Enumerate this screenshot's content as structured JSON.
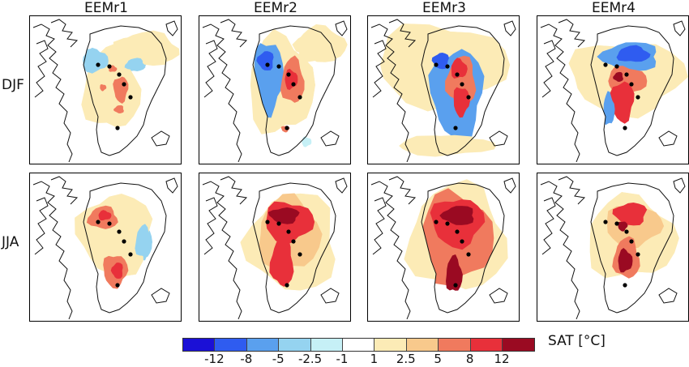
{
  "columns": [
    "EEMr1",
    "EEMr2",
    "EEMr3",
    "EEMr4"
  ],
  "rows": [
    "DJF",
    "JJA"
  ],
  "colorbar": {
    "title": "SAT [°C]",
    "tick_labels": [
      "-12",
      "-8",
      "-5",
      "-2.5",
      "-1",
      "1",
      "2.5",
      "5",
      "8",
      "12"
    ],
    "colors": [
      "#1b10d6",
      "#2f5cf0",
      "#5aa0ee",
      "#95d3f0",
      "#c6f0f6",
      "#ffffff",
      "#fcebb6",
      "#f8c98c",
      "#f07a5e",
      "#e8303a",
      "#9a0a22"
    ]
  },
  "panels": [
    {
      "name": "EEMr1-DJF",
      "blobs": [
        {
          "cx": 100,
          "cy": 90,
          "rx": 35,
          "ry": 50,
          "level": 6
        },
        {
          "cx": 80,
          "cy": 55,
          "rx": 16,
          "ry": 14,
          "level": 3
        },
        {
          "cx": 112,
          "cy": 90,
          "rx": 9,
          "ry": 16,
          "level": 8
        },
        {
          "cx": 110,
          "cy": 115,
          "rx": 6,
          "ry": 5,
          "level": 8
        },
        {
          "cx": 102,
          "cy": 65,
          "rx": 5,
          "ry": 4,
          "level": 8
        },
        {
          "cx": 90,
          "cy": 88,
          "rx": 4,
          "ry": 4,
          "level": 8
        },
        {
          "cx": 145,
          "cy": 40,
          "rx": 38,
          "ry": 20,
          "level": 6
        },
        {
          "cx": 130,
          "cy": 60,
          "rx": 12,
          "ry": 8,
          "level": 3
        }
      ]
    },
    {
      "name": "EEMr2-DJF",
      "blobs": [
        {
          "cx": 100,
          "cy": 85,
          "rx": 40,
          "ry": 60,
          "level": 6
        },
        {
          "cx": 85,
          "cy": 75,
          "rx": 18,
          "ry": 45,
          "level": 2
        },
        {
          "cx": 82,
          "cy": 55,
          "rx": 10,
          "ry": 12,
          "level": 1
        },
        {
          "cx": 115,
          "cy": 80,
          "rx": 14,
          "ry": 28,
          "level": 8
        },
        {
          "cx": 113,
          "cy": 78,
          "rx": 8,
          "ry": 12,
          "level": 9
        },
        {
          "cx": 106,
          "cy": 139,
          "rx": 5,
          "ry": 4,
          "level": 8
        },
        {
          "cx": 150,
          "cy": 35,
          "rx": 30,
          "ry": 22,
          "level": 6
        },
        {
          "cx": 132,
          "cy": 155,
          "rx": 6,
          "ry": 6,
          "level": 4
        }
      ]
    },
    {
      "name": "EEMr3-DJF",
      "blobs": [
        {
          "cx": 90,
          "cy": 60,
          "rx": 80,
          "ry": 50,
          "level": 6
        },
        {
          "cx": 110,
          "cy": 95,
          "rx": 32,
          "ry": 55,
          "level": 2
        },
        {
          "cx": 115,
          "cy": 80,
          "rx": 18,
          "ry": 30,
          "level": 8
        },
        {
          "cx": 112,
          "cy": 65,
          "rx": 10,
          "ry": 12,
          "level": 9
        },
        {
          "cx": 115,
          "cy": 105,
          "rx": 10,
          "ry": 18,
          "level": 9
        },
        {
          "cx": 90,
          "cy": 55,
          "rx": 10,
          "ry": 10,
          "level": 1
        },
        {
          "cx": 95,
          "cy": 160,
          "rx": 60,
          "ry": 12,
          "level": 6
        }
      ]
    },
    {
      "name": "EEMr4-DJF",
      "blobs": [
        {
          "cx": 110,
          "cy": 75,
          "rx": 70,
          "ry": 45,
          "level": 6
        },
        {
          "cx": 115,
          "cy": 50,
          "rx": 35,
          "ry": 18,
          "level": 2
        },
        {
          "cx": 118,
          "cy": 47,
          "rx": 20,
          "ry": 10,
          "level": 1
        },
        {
          "cx": 110,
          "cy": 80,
          "rx": 24,
          "ry": 18,
          "level": 8
        },
        {
          "cx": 105,
          "cy": 105,
          "rx": 14,
          "ry": 25,
          "level": 9
        },
        {
          "cx": 100,
          "cy": 75,
          "rx": 6,
          "ry": 6,
          "level": 10
        },
        {
          "cx": 88,
          "cy": 115,
          "rx": 7,
          "ry": 20,
          "level": 2
        }
      ]
    },
    {
      "name": "EEMr1-JJA",
      "blobs": [
        {
          "cx": 105,
          "cy": 75,
          "rx": 45,
          "ry": 50,
          "level": 6
        },
        {
          "cx": 90,
          "cy": 55,
          "rx": 18,
          "ry": 14,
          "level": 8
        },
        {
          "cx": 92,
          "cy": 52,
          "rx": 8,
          "ry": 6,
          "level": 9
        },
        {
          "cx": 105,
          "cy": 120,
          "rx": 15,
          "ry": 20,
          "level": 8
        },
        {
          "cx": 108,
          "cy": 120,
          "rx": 7,
          "ry": 10,
          "level": 9
        },
        {
          "cx": 140,
          "cy": 85,
          "rx": 10,
          "ry": 20,
          "level": 3
        }
      ]
    },
    {
      "name": "EEMr2-JJA",
      "blobs": [
        {
          "cx": 115,
          "cy": 85,
          "rx": 55,
          "ry": 60,
          "level": 6
        },
        {
          "cx": 110,
          "cy": 75,
          "rx": 38,
          "ry": 45,
          "level": 7
        },
        {
          "cx": 110,
          "cy": 60,
          "rx": 30,
          "ry": 25,
          "level": 9
        },
        {
          "cx": 105,
          "cy": 52,
          "rx": 18,
          "ry": 10,
          "level": 10
        },
        {
          "cx": 102,
          "cy": 110,
          "rx": 14,
          "ry": 30,
          "level": 9
        }
      ]
    },
    {
      "name": "EEMr3-JJA",
      "blobs": [
        {
          "cx": 110,
          "cy": 80,
          "rx": 60,
          "ry": 65,
          "level": 6
        },
        {
          "cx": 108,
          "cy": 80,
          "rx": 45,
          "ry": 55,
          "level": 8
        },
        {
          "cx": 110,
          "cy": 60,
          "rx": 32,
          "ry": 30,
          "level": 9
        },
        {
          "cx": 112,
          "cy": 52,
          "rx": 20,
          "ry": 12,
          "level": 10
        },
        {
          "cx": 106,
          "cy": 125,
          "rx": 10,
          "ry": 22,
          "level": 10
        }
      ]
    },
    {
      "name": "EEMr4-JJA",
      "blobs": [
        {
          "cx": 115,
          "cy": 80,
          "rx": 55,
          "ry": 50,
          "level": 6
        },
        {
          "cx": 118,
          "cy": 65,
          "rx": 35,
          "ry": 25,
          "level": 7
        },
        {
          "cx": 115,
          "cy": 50,
          "rx": 20,
          "ry": 14,
          "level": 9
        },
        {
          "cx": 110,
          "cy": 105,
          "rx": 16,
          "ry": 25,
          "level": 8
        },
        {
          "cx": 108,
          "cy": 108,
          "rx": 9,
          "ry": 14,
          "level": 10
        },
        {
          "cx": 105,
          "cy": 65,
          "rx": 6,
          "ry": 6,
          "level": 10
        }
      ]
    }
  ]
}
